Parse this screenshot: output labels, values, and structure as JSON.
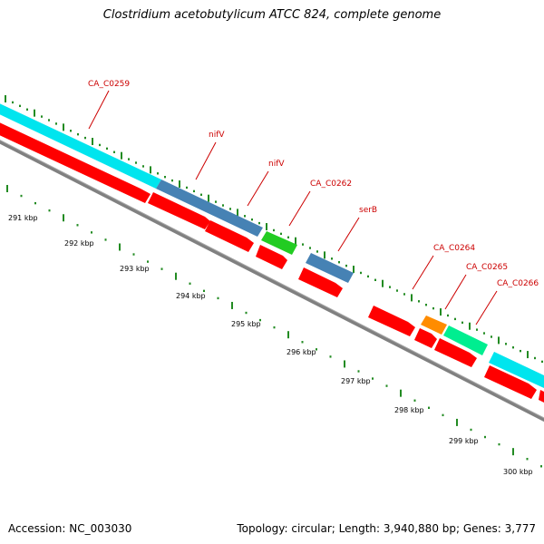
{
  "title": "Clostridium acetobutylicum ATCC 824, complete genome",
  "footer": {
    "accession": "Accession: NC_003030",
    "summary": "Topology: circular; Length: 3,940,880 bp; Genes: 3,777"
  },
  "scale": {
    "ticks": [
      "291 kbp",
      "292 kbp",
      "293 kbp",
      "294 kbp",
      "295 kbp",
      "296 kbp",
      "297 kbp",
      "298 kbp",
      "299 kbp",
      "300 kbp"
    ]
  },
  "genes": [
    {
      "label": "CA_C0259",
      "color": "#00e5ee"
    },
    {
      "label": "nifV",
      "color": "#4682b4"
    },
    {
      "label": "nifV",
      "color": "#4682b4"
    },
    {
      "label": "CA_C0262",
      "color": "#22cc22"
    },
    {
      "label": "serB",
      "color": "#4682b4"
    },
    {
      "label": "CA_C0264",
      "color": "#ff0000"
    },
    {
      "label": "CA_C0265",
      "color": "#ff8c00"
    },
    {
      "label": "CA_C0266",
      "color": "#00ee90"
    }
  ],
  "colors": {
    "label": "#cc0000",
    "cds": "#ff0000",
    "backbone": "#808080",
    "tick": "#228b22"
  }
}
